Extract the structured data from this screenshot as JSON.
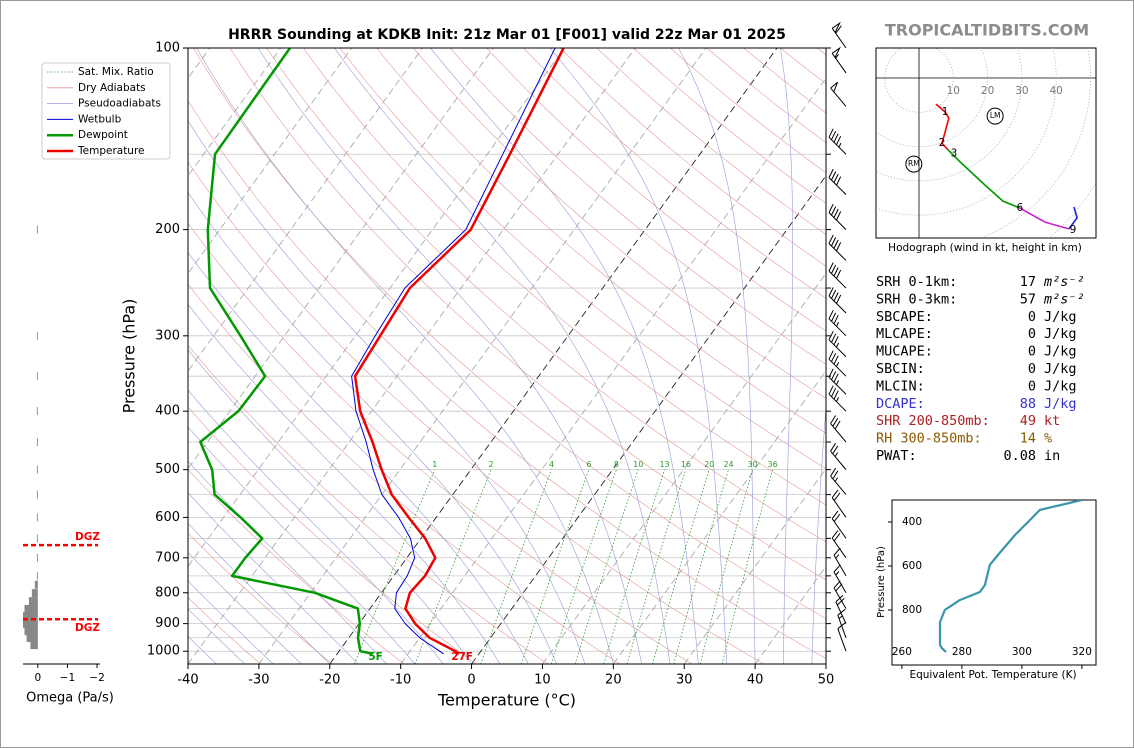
{
  "brand": "TROPICALTIDBITS.COM",
  "stats": [
    {
      "label": "SRH 0-1km:",
      "value": 17,
      "unit": "m²s⁻²",
      "color": "#000000"
    },
    {
      "label": "SRH 0-3km:",
      "value": 57,
      "unit": "m²s⁻²",
      "color": "#000000"
    },
    {
      "label": "SBCAPE:",
      "value": 0,
      "unit": "J/kg",
      "color": "#000000"
    },
    {
      "label": "MLCAPE:",
      "value": 0,
      "unit": "J/kg",
      "color": "#000000"
    },
    {
      "label": "MUCAPE:",
      "value": 0,
      "unit": "J/kg",
      "color": "#000000"
    },
    {
      "label": "SBCIN:",
      "value": 0,
      "unit": "J/kg",
      "color": "#000000"
    },
    {
      "label": "MLCIN:",
      "value": 0,
      "unit": "J/kg",
      "color": "#000000"
    },
    {
      "label": "DCAPE:",
      "value": 88,
      "unit": "J/kg",
      "color": "#3333cc"
    },
    {
      "label": "SHR 200-850mb:",
      "value": 49,
      "unit": "kt",
      "color": "#aa2222"
    },
    {
      "label": "RH 300-850mb:",
      "value": 14,
      "unit": "%",
      "color": "#8b5a00"
    },
    {
      "label": "PWAT:",
      "value": 0.08,
      "unit": "in",
      "color": "#000000"
    }
  ],
  "chart_data": [
    {
      "type": "skewt",
      "title": "HRRR Sounding at KDKB Init: 21z Mar 01 [F001] valid 22z Mar 01 2025",
      "xlabel": "Temperature (°C)",
      "ylabel": "Pressure (hPa)",
      "xlim": [
        -40,
        50
      ],
      "xticks": [
        -40,
        -30,
        -20,
        -10,
        0,
        10,
        20,
        30,
        40,
        50
      ],
      "ylim": [
        1050,
        100
      ],
      "yscale": "log",
      "yticks": [
        100,
        200,
        300,
        400,
        500,
        600,
        700,
        800,
        900,
        1000
      ],
      "yminor": [
        150,
        250,
        350,
        450,
        550,
        650,
        750,
        850,
        950
      ],
      "grid": true,
      "legend": "upper left",
      "highlight_isotherms": [
        0,
        -20
      ],
      "pressure": [
        1010,
        1000,
        950,
        900,
        850,
        800,
        750,
        700,
        650,
        600,
        550,
        500,
        450,
        400,
        350,
        300,
        250,
        200,
        150,
        100
      ],
      "series": [
        {
          "name": "Wetbulb",
          "color": "#0000dd",
          "linewidth": 1,
          "values": [
            -5.0,
            -5.8,
            -10.0,
            -13.5,
            -16.5,
            -17.9,
            -18.1,
            -18.9,
            -21.5,
            -25.3,
            -30.0,
            -33.8,
            -37.6,
            -42.2,
            -46.4,
            -47.2,
            -47.9,
            -45.3,
            -47.8,
            -51.3
          ]
        },
        {
          "name": "Dewpoint",
          "color": "#009900",
          "linewidth": 2.5,
          "surface_label": "5F",
          "values": [
            -15.0,
            -17.0,
            -18.7,
            -19.9,
            -21.7,
            -29.4,
            -42.8,
            -42.8,
            -42.4,
            -47.6,
            -53.6,
            -56.5,
            -61.0,
            -58.8,
            -58.6,
            -66.2,
            -75.4,
            -81.7,
            -88.4,
            -88.7
          ]
        },
        {
          "name": "Temperature",
          "color": "#ee0000",
          "linewidth": 2.5,
          "surface_label": "27F",
          "values": [
            -2.8,
            -3.6,
            -8.6,
            -12.1,
            -15.0,
            -16.0,
            -15.6,
            -16.0,
            -19.4,
            -23.9,
            -28.6,
            -32.6,
            -36.7,
            -41.6,
            -45.9,
            -46.5,
            -47.2,
            -44.6,
            -46.8,
            -50.1
          ]
        }
      ],
      "reference_lines": [
        {
          "name": "Sat. Mix. Ratio",
          "color": "#2e9a2e",
          "linestyle": "dotted"
        },
        {
          "name": "Dry Adiabats",
          "color": "#e39a9a",
          "linestyle": "solid"
        },
        {
          "name": "Pseudoadiabats",
          "color": "#9a9ad8",
          "linestyle": "solid"
        }
      ],
      "mixing_ratios": [
        1,
        2,
        4,
        6,
        8,
        10,
        13,
        16,
        20,
        24,
        30,
        36
      ],
      "mixing_ratio_top": 500,
      "winds": {
        "pressure": [
          100,
          110,
          125,
          150,
          175,
          200,
          225,
          250,
          275,
          300,
          325,
          350,
          375,
          400,
          450,
          500,
          550,
          600,
          650,
          700,
          750,
          800,
          850,
          900,
          950,
          1000
        ],
        "speed": [
          60,
          55,
          50,
          45,
          40,
          40,
          40,
          40,
          40,
          35,
          35,
          35,
          35,
          35,
          30,
          25,
          25,
          20,
          20,
          20,
          15,
          15,
          20,
          20,
          15,
          10
        ],
        "direction": [
          325,
          325,
          320,
          315,
          315,
          315,
          315,
          315,
          315,
          315,
          315,
          315,
          315,
          315,
          320,
          320,
          320,
          325,
          325,
          325,
          330,
          330,
          330,
          335,
          340,
          340
        ]
      }
    },
    {
      "type": "bar",
      "orientation": "horizontal",
      "xlabel": "Omega (Pa/s)",
      "xlim": [
        0.5,
        -2.1
      ],
      "xticks": [
        0,
        {
          "value": -1,
          "label": "−1"
        },
        {
          "value": -2,
          "label": "−2"
        }
      ],
      "ylim": [
        1050,
        100
      ],
      "yscale": "log",
      "color": "#888888",
      "pressure": [
        200,
        300,
        350,
        400,
        450,
        500,
        550,
        600,
        650,
        700,
        750,
        776,
        801,
        826,
        851,
        874,
        901,
        926,
        951,
        977
      ],
      "values": [
        0.03,
        0.03,
        0.03,
        0.03,
        0.03,
        0.03,
        0.03,
        0.03,
        0.03,
        0.03,
        0.03,
        0.1,
        0.2,
        0.3,
        0.45,
        0.5,
        0.5,
        0.45,
        0.38,
        0.25
      ],
      "dgz": {
        "label": "DGZ",
        "color": "#ff0000",
        "pressure": [
          667,
          885
        ]
      }
    },
    {
      "type": "hodograph",
      "xlabel": "Hodograph (wind in kt, height in km)",
      "rticks": [
        10,
        20,
        30,
        40
      ],
      "series": [
        {
          "color": "#ff0000",
          "u": [
            5.0,
            7.6,
            8.7,
            7.3,
            6.7,
            8.5
          ],
          "v": [
            -7.6,
            -9.9,
            -11.7,
            -16.9,
            -19.0,
            -21.0
          ]
        },
        {
          "color": "#009900",
          "u": [
            8.5,
            12.0,
            19.2,
            24.5,
            29.4
          ],
          "v": [
            -21.0,
            -24.5,
            -31.2,
            -35.9,
            -37.9
          ]
        },
        {
          "color": "#cc22cc",
          "u": [
            29.4,
            36.7,
            43.7
          ],
          "v": [
            -37.9,
            -42.0,
            -44.0
          ]
        },
        {
          "color": "#2222dd",
          "u": [
            43.7,
            46.1,
            45.2
          ],
          "v": [
            -44.0,
            -40.8,
            -37.6
          ]
        }
      ],
      "km_marks": [
        {
          "km": 1,
          "u": 7.6,
          "v": -9.9
        },
        {
          "km": 2,
          "u": 6.7,
          "v": -19.0
        },
        {
          "km": 3,
          "u": 10.2,
          "v": -22.0
        },
        {
          "km": 6,
          "u": 29.4,
          "v": -37.9
        },
        {
          "km": 9,
          "u": 44.9,
          "v": -44.3
        }
      ],
      "storm_motion": [
        {
          "label": "RM",
          "u": -1.5,
          "v": -25.1
        },
        {
          "label": "LM",
          "u": 22.2,
          "v": -11.1
        }
      ]
    },
    {
      "type": "line",
      "xlabel": "Equivalent Pot. Temperature (K)",
      "ylabel": "Pressure (hPa)",
      "xlim": [
        256.7,
        324.7
      ],
      "xticks": [
        260,
        280,
        300,
        320
      ],
      "ylim": [
        1050,
        300
      ],
      "yticks": [
        400,
        600,
        800
      ],
      "color": "#3a95a8",
      "pressure": [
        300,
        345,
        391,
        459,
        550,
        595,
        686,
        718,
        755,
        800,
        855,
        959,
        973,
        991
      ],
      "values": [
        320.0,
        306.0,
        302.7,
        297.7,
        292.0,
        289.3,
        287.7,
        286.0,
        279.3,
        274.3,
        272.7,
        272.7,
        273.3,
        274.7
      ]
    }
  ]
}
